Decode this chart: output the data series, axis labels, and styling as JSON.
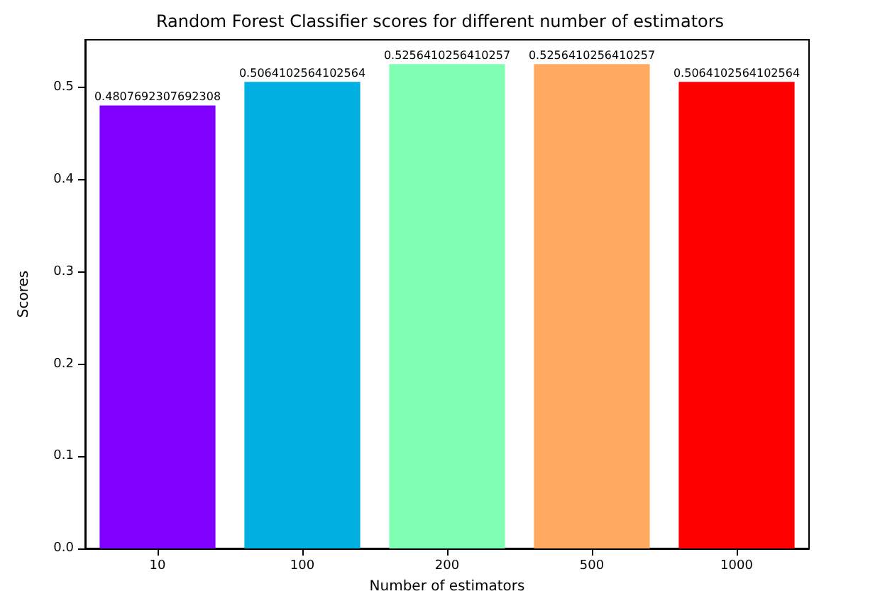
{
  "chart_data": {
    "type": "bar",
    "title": "Random Forest Classifier scores for different number of estimators",
    "xlabel": "Number of estimators",
    "ylabel": "Scores",
    "categories": [
      "10",
      "100",
      "200",
      "500",
      "1000"
    ],
    "values": [
      0.4807692307692308,
      0.5064102564102564,
      0.5256410256410257,
      0.5256410256410257,
      0.5064102564102564
    ],
    "colors": [
      "#7f00ff",
      "#00b0e0",
      "#80ffb4",
      "#ffaa60",
      "#ff0000"
    ],
    "ylim": [
      0,
      0.552
    ],
    "yticks": [
      {
        "value": 0,
        "label": "0.0"
      },
      0.1,
      0.2,
      0.3,
      0.4,
      0.5
    ],
    "grid": false,
    "data_labels": true
  }
}
